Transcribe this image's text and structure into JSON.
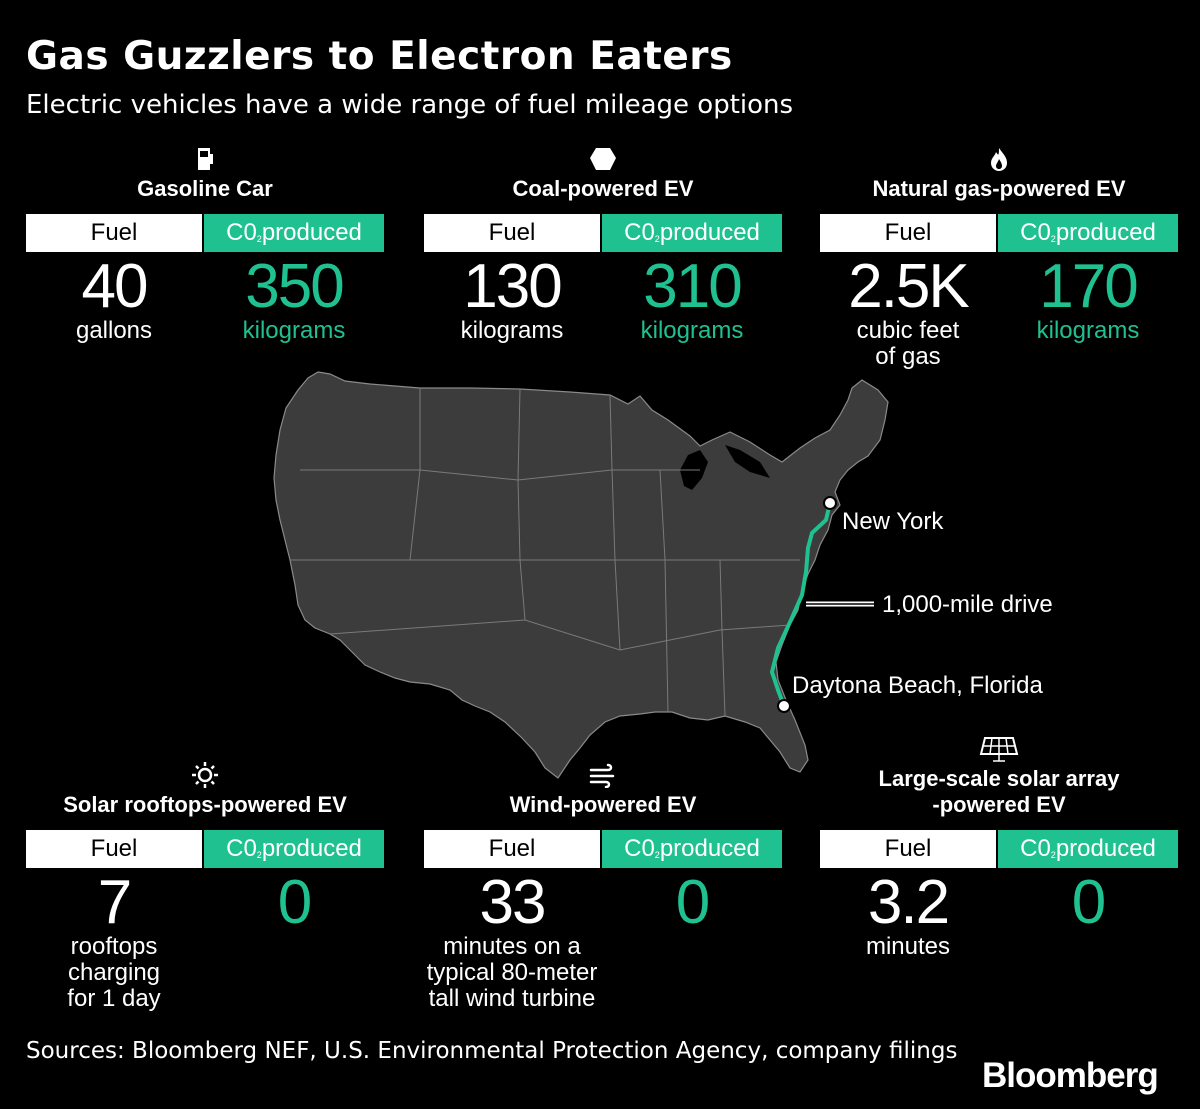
{
  "title": "Gas Guzzlers to Electron Eaters",
  "subtitle": "Electric vehicles have a wide range of fuel mileage options",
  "header_labels": {
    "fuel": "Fuel",
    "co2_prefix": "C0",
    "co2_sub": "2",
    "co2_suffix": "produced"
  },
  "colors": {
    "accent": "#20c190",
    "background": "#000000",
    "map_fill": "#3c3c3c"
  },
  "vehicles": [
    {
      "name": "Gasoline Car",
      "icon": "fuel-pump-icon",
      "fuel_value": "40",
      "fuel_unit": "gallons",
      "co2_value": "350",
      "co2_unit": "kilograms"
    },
    {
      "name": "Coal-powered EV",
      "icon": "coal-lump-icon",
      "fuel_value": "130",
      "fuel_unit": "kilograms",
      "co2_value": "310",
      "co2_unit": "kilograms"
    },
    {
      "name": "Natural gas-powered EV",
      "icon": "flame-icon",
      "fuel_value": "2.5K",
      "fuel_unit_line1": "cubic feet",
      "fuel_unit_line2": "of gas",
      "co2_value": "170",
      "co2_unit": "kilograms"
    },
    {
      "name": "Solar rooftops-powered EV",
      "icon": "sun-icon",
      "fuel_value": "7",
      "fuel_unit_line1": "rooftops",
      "fuel_unit_line2": "charging",
      "fuel_unit_line3": "for 1 day",
      "co2_value": "0"
    },
    {
      "name": "Wind-powered EV",
      "icon": "wind-icon",
      "fuel_value": "33",
      "fuel_unit_line1": "minutes on a",
      "fuel_unit_line2": "typical 80-meter",
      "fuel_unit_line3": "tall wind turbine",
      "co2_value": "0"
    },
    {
      "name_line1": "Large-scale solar array",
      "name_line2": "-powered EV",
      "icon": "solar-panel-icon",
      "fuel_value": "3.2",
      "fuel_unit": "minutes",
      "co2_value": "0"
    }
  ],
  "map": {
    "origin": "New York",
    "destination": "Daytona Beach, Florida",
    "route_label": "1,000-mile drive"
  },
  "sources": "Sources: Bloomberg NEF, U.S. Environmental Protection Agency, company filings",
  "brand": "Bloomberg"
}
